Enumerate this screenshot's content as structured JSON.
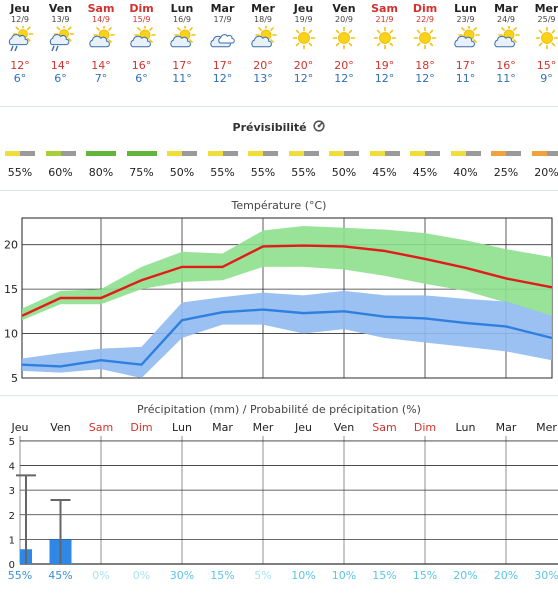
{
  "days": [
    {
      "name": "Jeu",
      "date": "12/9",
      "weekend": false,
      "icon": "sun-cloud-rain-icon",
      "tmax": "12°",
      "tmin": "6°"
    },
    {
      "name": "Ven",
      "date": "13/9",
      "weekend": false,
      "icon": "sun-cloud-rain-icon",
      "tmax": "14°",
      "tmin": "6°"
    },
    {
      "name": "Sam",
      "date": "14/9",
      "weekend": true,
      "icon": "sun-cloud-icon",
      "tmax": "14°",
      "tmin": "7°"
    },
    {
      "name": "Dim",
      "date": "15/9",
      "weekend": true,
      "icon": "sun-cloud-icon",
      "tmax": "16°",
      "tmin": "6°"
    },
    {
      "name": "Lun",
      "date": "16/9",
      "weekend": false,
      "icon": "sun-cloud-icon",
      "tmax": "17°",
      "tmin": "11°"
    },
    {
      "name": "Mar",
      "date": "17/9",
      "weekend": false,
      "icon": "cloud-icon",
      "tmax": "17°",
      "tmin": "12°"
    },
    {
      "name": "Mer",
      "date": "18/9",
      "weekend": false,
      "icon": "sun-cloud-icon",
      "tmax": "20°",
      "tmin": "13°"
    },
    {
      "name": "Jeu",
      "date": "19/9",
      "weekend": false,
      "icon": "sun-icon",
      "tmax": "20°",
      "tmin": "12°"
    },
    {
      "name": "Ven",
      "date": "20/9",
      "weekend": false,
      "icon": "sun-icon",
      "tmax": "20°",
      "tmin": "12°"
    },
    {
      "name": "Sam",
      "date": "21/9",
      "weekend": true,
      "icon": "sun-icon",
      "tmax": "19°",
      "tmin": "12°"
    },
    {
      "name": "Dim",
      "date": "22/9",
      "weekend": true,
      "icon": "sun-icon",
      "tmax": "18°",
      "tmin": "12°"
    },
    {
      "name": "Lun",
      "date": "23/9",
      "weekend": false,
      "icon": "sun-cloud-icon",
      "tmax": "17°",
      "tmin": "11°"
    },
    {
      "name": "Mar",
      "date": "24/9",
      "weekend": false,
      "icon": "sun-cloud-icon",
      "tmax": "16°",
      "tmin": "11°"
    },
    {
      "name": "Mer",
      "date": "25/9",
      "weekend": false,
      "icon": "sun-icon",
      "tmax": "15°",
      "tmin": "9°"
    }
  ],
  "predictability": {
    "title": "Prévisibilité",
    "icon": "predictability-info-icon",
    "values": [
      "55%",
      "60%",
      "80%",
      "75%",
      "50%",
      "55%",
      "55%",
      "55%",
      "50%",
      "45%",
      "45%",
      "40%",
      "25%",
      "20%"
    ],
    "levels": [
      55,
      60,
      80,
      75,
      50,
      55,
      55,
      55,
      50,
      45,
      45,
      40,
      25,
      20
    ]
  },
  "colors": {
    "max_line": "#e21b1b",
    "max_band": "#8ee08e",
    "min_line": "#2f7fe0",
    "min_band": "#8fbaf0",
    "weekend": "#d3322c",
    "precip_bar": "#2f87e6",
    "precip_range": "#666666",
    "prob_fade": "#a8e3f0",
    "prob_mid": "#5bc4e6",
    "prob_strong": "#3a8fd6"
  },
  "chart_data": [
    {
      "type": "line",
      "title": "Température (°C)",
      "x": [
        "Jeu 12/9",
        "Ven 13/9",
        "Sam 14/9",
        "Dim 15/9",
        "Lun 16/9",
        "Mar 17/9",
        "Mer 18/9",
        "Jeu 19/9",
        "Ven 20/9",
        "Sam 21/9",
        "Dim 22/9",
        "Lun 23/9",
        "Mar 24/9",
        "Mer 25/9"
      ],
      "y_ticks": [
        "5",
        "10",
        "15",
        "20"
      ],
      "ylim": [
        5,
        23
      ],
      "series": [
        {
          "values": [
            12,
            14,
            14,
            16,
            17.5,
            17.5,
            19.8,
            19.9,
            19.8,
            19.3,
            18.4,
            17.4,
            16.2,
            15.2
          ],
          "band_low": [
            11.5,
            13.3,
            13.3,
            15.0,
            15.8,
            16.0,
            17.5,
            17.5,
            17.2,
            16.5,
            15.6,
            14.8,
            13.5,
            12.0
          ],
          "band_high": [
            12.8,
            14.8,
            15.0,
            17.5,
            19.2,
            19.0,
            21.6,
            22.1,
            21.9,
            21.7,
            21.3,
            20.5,
            19.5,
            18.6
          ]
        },
        {
          "values": [
            6.5,
            6.3,
            7.0,
            6.5,
            11.5,
            12.4,
            12.7,
            12.3,
            12.5,
            11.9,
            11.7,
            11.2,
            10.8,
            9.5
          ],
          "band_low": [
            5.8,
            5.6,
            6.0,
            5.0,
            9.5,
            11.0,
            11.0,
            10.0,
            10.5,
            9.5,
            9.0,
            8.5,
            8.0,
            7.0
          ],
          "band_high": [
            7.2,
            7.8,
            8.3,
            8.5,
            13.5,
            14.1,
            14.6,
            14.3,
            14.8,
            14.3,
            14.3,
            13.9,
            13.6,
            12.0
          ]
        }
      ]
    },
    {
      "type": "bar",
      "title": "Précipitation (mm) / Probabilité de précipitation (%)",
      "categories": [
        "Jeu",
        "Ven",
        "Sam",
        "Dim",
        "Lun",
        "Mar",
        "Mer",
        "Jeu",
        "Ven",
        "Sam",
        "Dim",
        "Lun",
        "Mar",
        "Mer"
      ],
      "weekend": [
        false,
        false,
        true,
        true,
        false,
        false,
        false,
        false,
        false,
        true,
        true,
        false,
        false,
        false
      ],
      "y_ticks": [
        "0",
        "1",
        "2",
        "3",
        "4",
        "5"
      ],
      "ylim": [
        0,
        5.2
      ],
      "series": [
        {
          "values": [
            0.6,
            1.0,
            0,
            0,
            0,
            0,
            0,
            0,
            0,
            0,
            0,
            0,
            0,
            0
          ],
          "range_high": [
            3.6,
            2.6,
            null,
            null,
            null,
            null,
            null,
            null,
            null,
            null,
            null,
            null,
            null,
            null
          ]
        }
      ],
      "probability": [
        "55%",
        "45%",
        "0%",
        "0%",
        "30%",
        "15%",
        "5%",
        "10%",
        "10%",
        "15%",
        "15%",
        "20%",
        "20%",
        "30%"
      ],
      "probability_levels": [
        55,
        45,
        0,
        0,
        30,
        15,
        5,
        10,
        10,
        15,
        15,
        20,
        20,
        30
      ]
    }
  ]
}
